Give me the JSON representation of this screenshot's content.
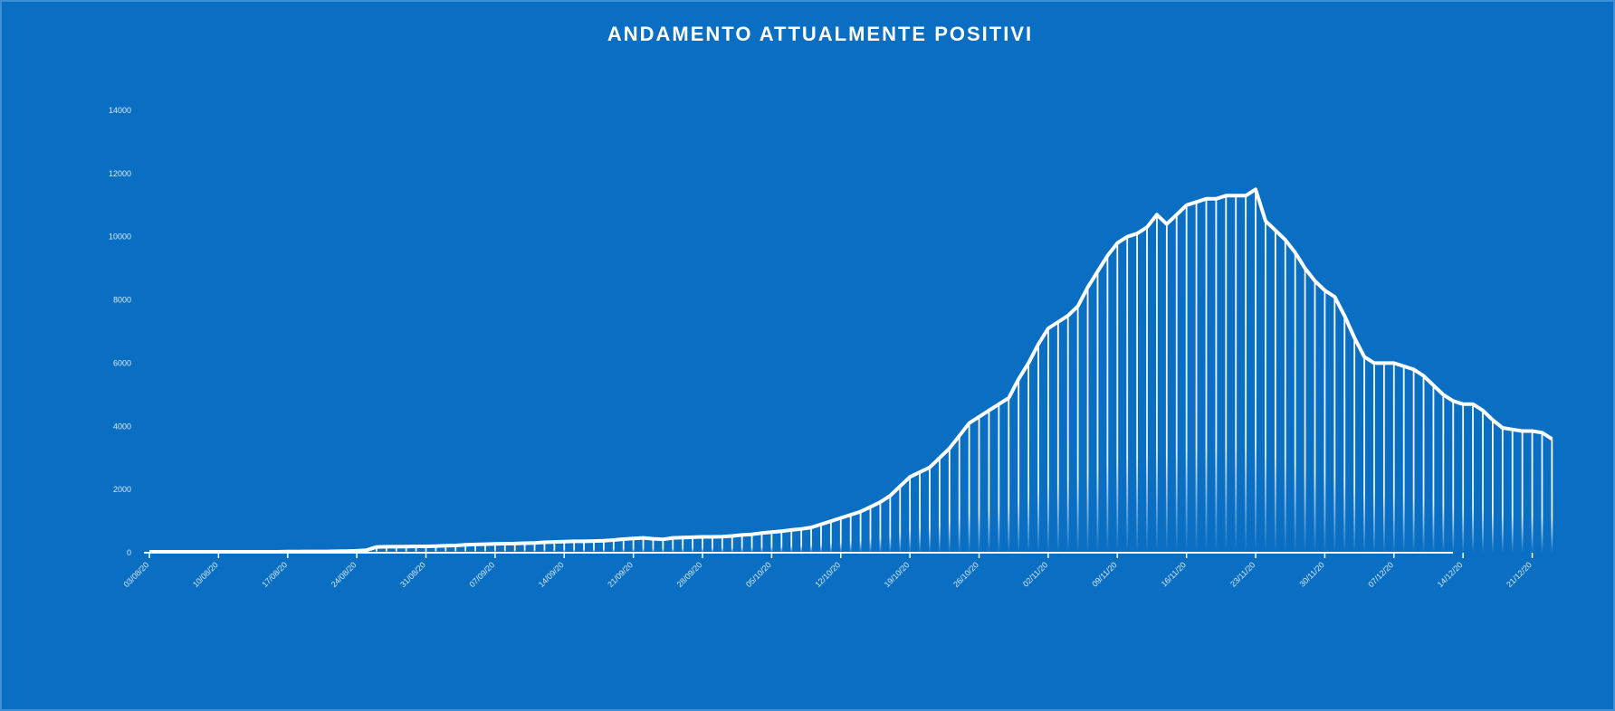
{
  "chart_data": {
    "type": "line",
    "title": "ANDAMENTO ATTUALMENTE POSITIVI",
    "color": "#ffffff",
    "drop_lines": true,
    "categories": [
      "03/08/20",
      null,
      null,
      null,
      null,
      null,
      null,
      "10/08/20",
      null,
      null,
      null,
      null,
      null,
      null,
      "17/08/20",
      null,
      null,
      null,
      null,
      null,
      null,
      "24/08/20",
      null,
      null,
      null,
      null,
      null,
      null,
      "31/08/20",
      null,
      null,
      null,
      null,
      null,
      null,
      "07/09/20",
      null,
      null,
      null,
      null,
      null,
      null,
      "14/09/20",
      null,
      null,
      null,
      null,
      null,
      null,
      "21/09/20",
      null,
      null,
      null,
      null,
      null,
      null,
      "28/09/20",
      null,
      null,
      null,
      null,
      null,
      null,
      "05/10/20",
      null,
      null,
      null,
      null,
      null,
      null,
      "12/10/20",
      null,
      null,
      null,
      null,
      null,
      null,
      "19/10/20",
      null,
      null,
      null,
      null,
      null,
      null,
      "26/10/20",
      null,
      null,
      null,
      null,
      null,
      null,
      "02/11/20",
      null,
      null,
      null,
      null,
      null,
      null,
      "09/11/20",
      null,
      null,
      null,
      null,
      null,
      null,
      "16/11/20",
      null,
      null,
      null,
      null,
      null,
      null,
      "23/11/20",
      null,
      null,
      null,
      null,
      null,
      null,
      "30/11/20",
      null,
      null,
      null,
      null,
      null,
      null,
      "07/12/20",
      null,
      null,
      null,
      null,
      null,
      null,
      "14/12/20",
      null,
      null,
      null,
      null,
      null,
      null,
      "21/12/20",
      null,
      null
    ],
    "values": [
      30,
      30,
      30,
      30,
      30,
      30,
      30,
      30,
      30,
      30,
      30,
      30,
      30,
      30,
      35,
      35,
      40,
      40,
      40,
      45,
      50,
      60,
      80,
      180,
      190,
      190,
      195,
      200,
      200,
      210,
      220,
      230,
      250,
      260,
      270,
      280,
      285,
      290,
      300,
      310,
      330,
      340,
      350,
      360,
      360,
      370,
      380,
      400,
      430,
      450,
      470,
      440,
      420,
      470,
      480,
      490,
      500,
      500,
      510,
      530,
      560,
      580,
      620,
      650,
      680,
      720,
      750,
      800,
      900,
      1000,
      1100,
      1200,
      1300,
      1450,
      1600,
      1800,
      2100,
      2400,
      2550,
      2700,
      3000,
      3300,
      3700,
      4100,
      4300,
      4500,
      4700,
      4900,
      5500,
      6000,
      6600,
      7100,
      7300,
      7500,
      7800,
      8400,
      8900,
      9400,
      9800,
      10000,
      10100,
      10300,
      10700,
      10400,
      10700,
      11000,
      11100,
      11200,
      11200,
      11300,
      11300,
      11300,
      11500,
      10500,
      10200,
      9900,
      9500,
      9000,
      8600,
      8300,
      8100,
      7500,
      6800,
      6200,
      6000,
      6000,
      6000,
      5900,
      5800,
      5600,
      5300,
      5000,
      4800,
      4700,
      4700,
      4500,
      4200,
      3950,
      3900,
      3850,
      3850,
      3800,
      3600
    ],
    "ylim": [
      0,
      14000
    ],
    "yticks": [
      0,
      2000,
      4000,
      6000,
      8000,
      10000,
      12000,
      14000
    ]
  }
}
